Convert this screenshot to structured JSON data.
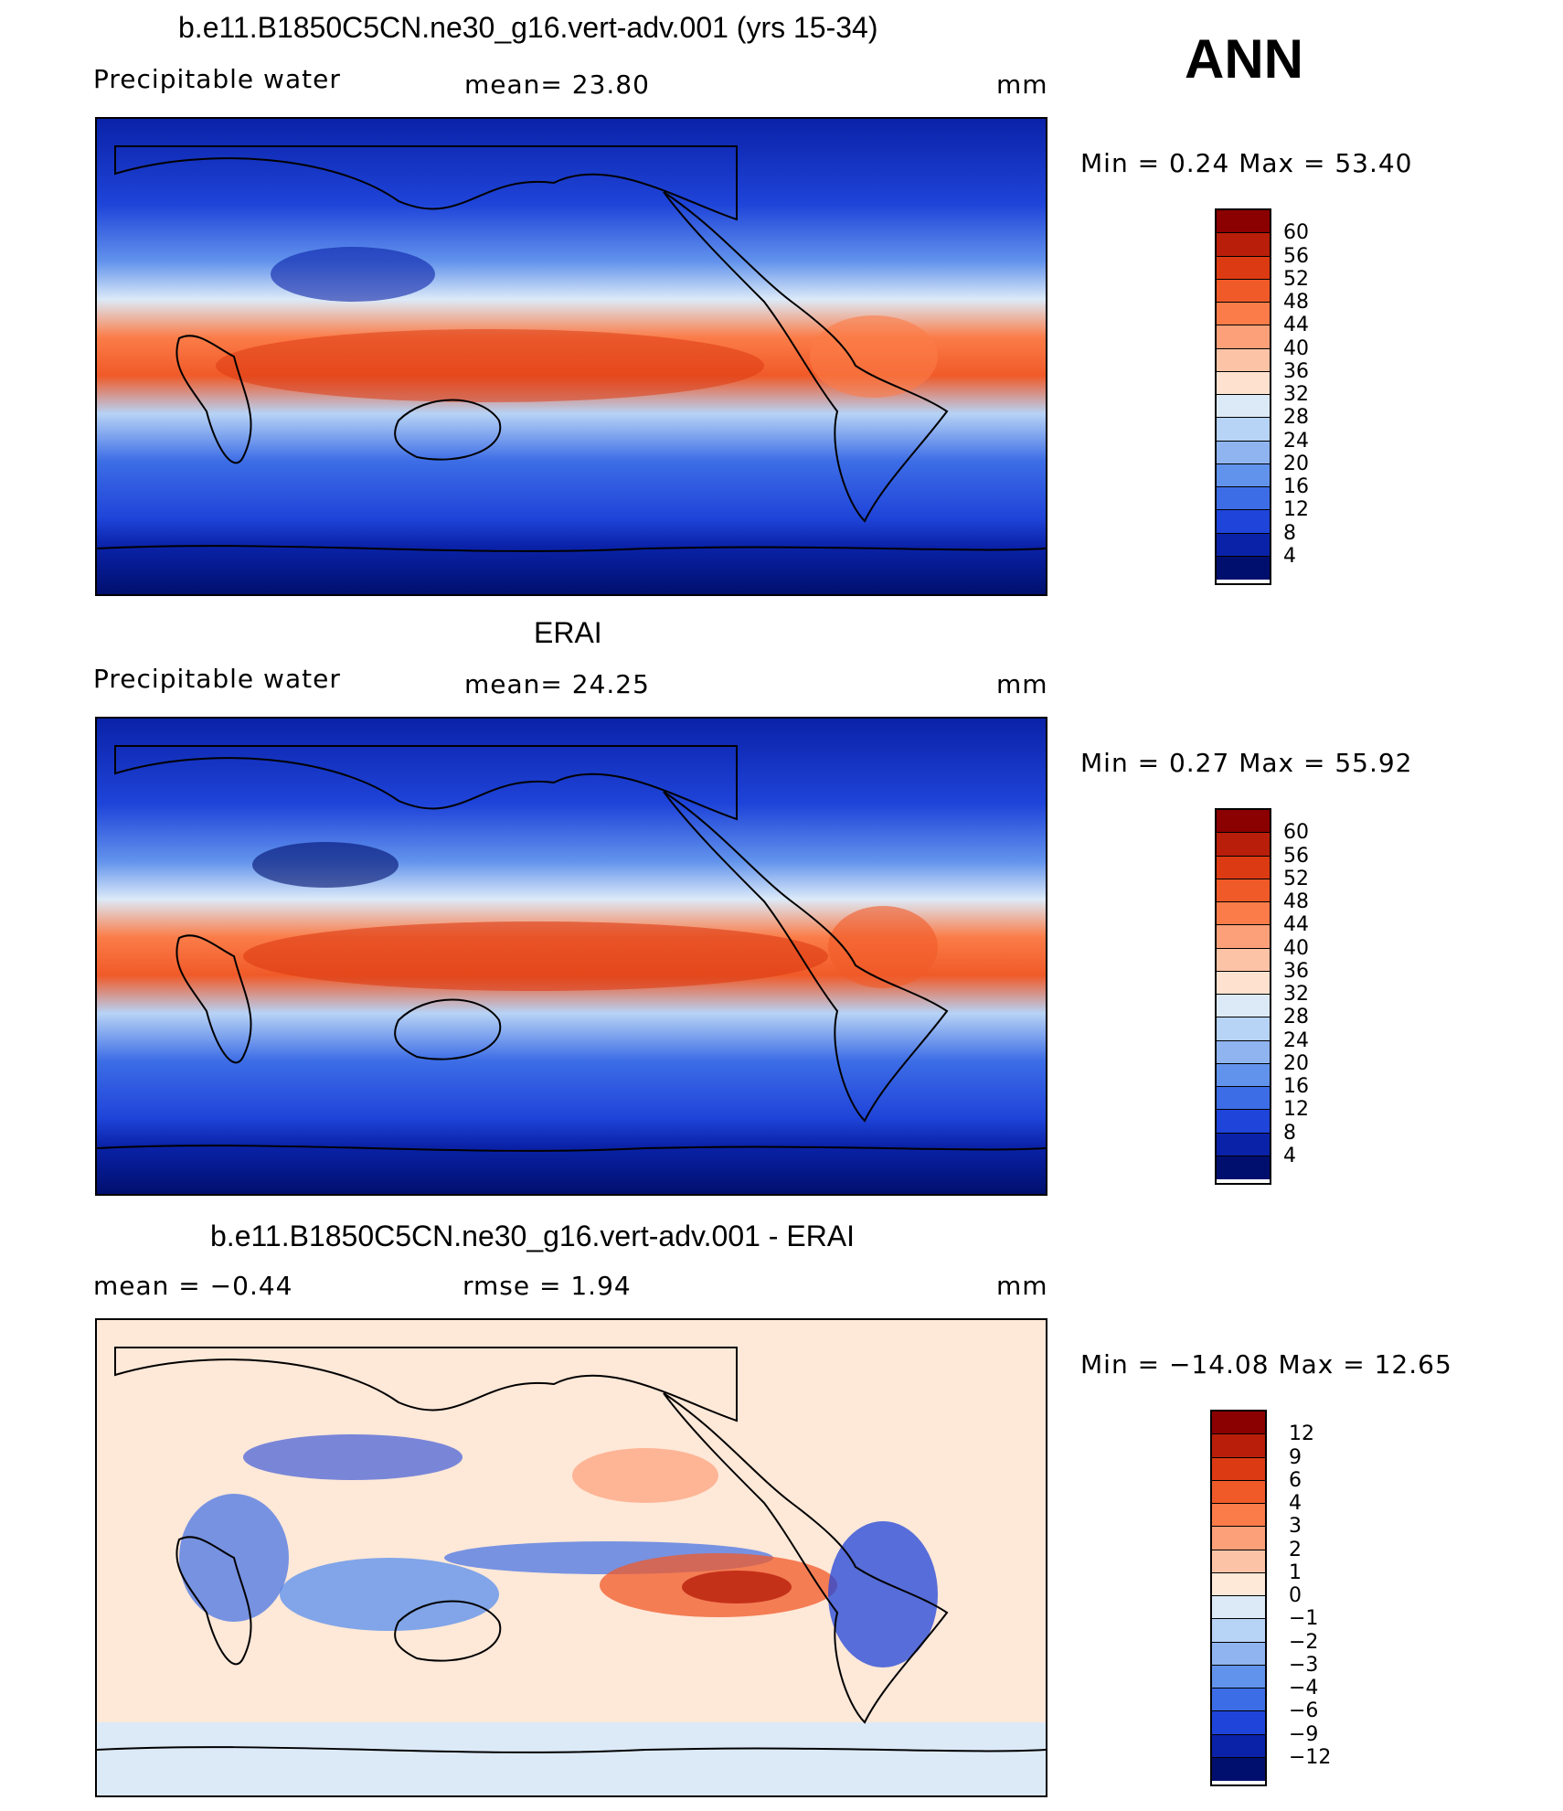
{
  "season": "ANN",
  "panels": [
    {
      "title": "b.e11.B1850C5CN.ne30_g16.vert-adv.001 (yrs 15-34)",
      "left_label": "Precipitable  water",
      "center_label": "mean=   23.80",
      "right_label": "mm",
      "minmax": "Min  =     0.24  Max  =    53.40",
      "colorbar_labels": [
        "60",
        "56",
        "52",
        "48",
        "44",
        "40",
        "36",
        "32",
        "28",
        "24",
        "20",
        "16",
        "12",
        "8",
        "4"
      ],
      "colorbar_colors": [
        "#8b0000",
        "#b81e0a",
        "#dc3a12",
        "#f05a28",
        "#fb7c48",
        "#fca07a",
        "#fdc3a6",
        "#fee2cf",
        "#dceaf8",
        "#b7d3f5",
        "#8fb4f0",
        "#6293ec",
        "#3d6de6",
        "#1f44d9",
        "#0a22a8",
        "#000f6e"
      ]
    },
    {
      "title": "ERAI",
      "left_label": "Precipitable  water",
      "center_label": "mean=   24.25",
      "right_label": "mm",
      "minmax": "Min  =     0.27  Max  =    55.92",
      "colorbar_labels": [
        "60",
        "56",
        "52",
        "48",
        "44",
        "40",
        "36",
        "32",
        "28",
        "24",
        "20",
        "16",
        "12",
        "8",
        "4"
      ],
      "colorbar_colors": [
        "#8b0000",
        "#b81e0a",
        "#dc3a12",
        "#f05a28",
        "#fb7c48",
        "#fca07a",
        "#fdc3a6",
        "#fee2cf",
        "#dceaf8",
        "#b7d3f5",
        "#8fb4f0",
        "#6293ec",
        "#3d6de6",
        "#1f44d9",
        "#0a22a8",
        "#000f6e"
      ]
    },
    {
      "title": "b.e11.B1850C5CN.ne30_g16.vert-adv.001 - ERAI",
      "left_label": "mean  =    −0.44",
      "center_label": "rmse  =     1.94",
      "right_label": "mm",
      "minmax": "Min  =  −14.08  Max  =    12.65",
      "colorbar_labels": [
        "12",
        "9",
        "6",
        "4",
        "3",
        "2",
        "1",
        "0",
        "−1",
        "−2",
        "−3",
        "−4",
        "−6",
        "−9",
        "−12"
      ],
      "colorbar_colors": [
        "#8b0000",
        "#b81e0a",
        "#dc3a12",
        "#f05a28",
        "#fb7c48",
        "#fca07a",
        "#fdc3a6",
        "#fee8d8",
        "#dceaf8",
        "#b7d3f5",
        "#8fb4f0",
        "#6293ec",
        "#3d6de6",
        "#1f44d9",
        "#0a22a8",
        "#000f6e"
      ]
    }
  ]
}
